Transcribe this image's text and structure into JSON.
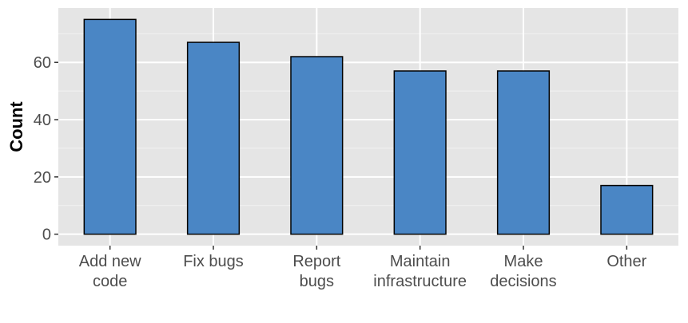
{
  "chart_data": {
    "type": "bar",
    "categories": [
      [
        "Add new",
        "code"
      ],
      [
        "Fix bugs"
      ],
      [
        "Report",
        "bugs"
      ],
      [
        "Maintain",
        "infrastructure"
      ],
      [
        "Make",
        "decisions"
      ],
      [
        "Other"
      ]
    ],
    "values": [
      75,
      67,
      62,
      57,
      57,
      17
    ],
    "title": "",
    "xlabel": "",
    "ylabel": "Count",
    "ylim": [
      -4,
      79
    ],
    "yticks": [
      0,
      20,
      40,
      60
    ],
    "grid": true,
    "legend": "none",
    "colors": {
      "bar_fill": "#4a86c5",
      "bar_stroke": "#000000",
      "panel_background": "#e5e5e5",
      "grid_major": "#ffffff",
      "grid_minor": "#f2f2f2",
      "tick_text": "#4d4d4d",
      "axis_title": "#000000"
    }
  }
}
